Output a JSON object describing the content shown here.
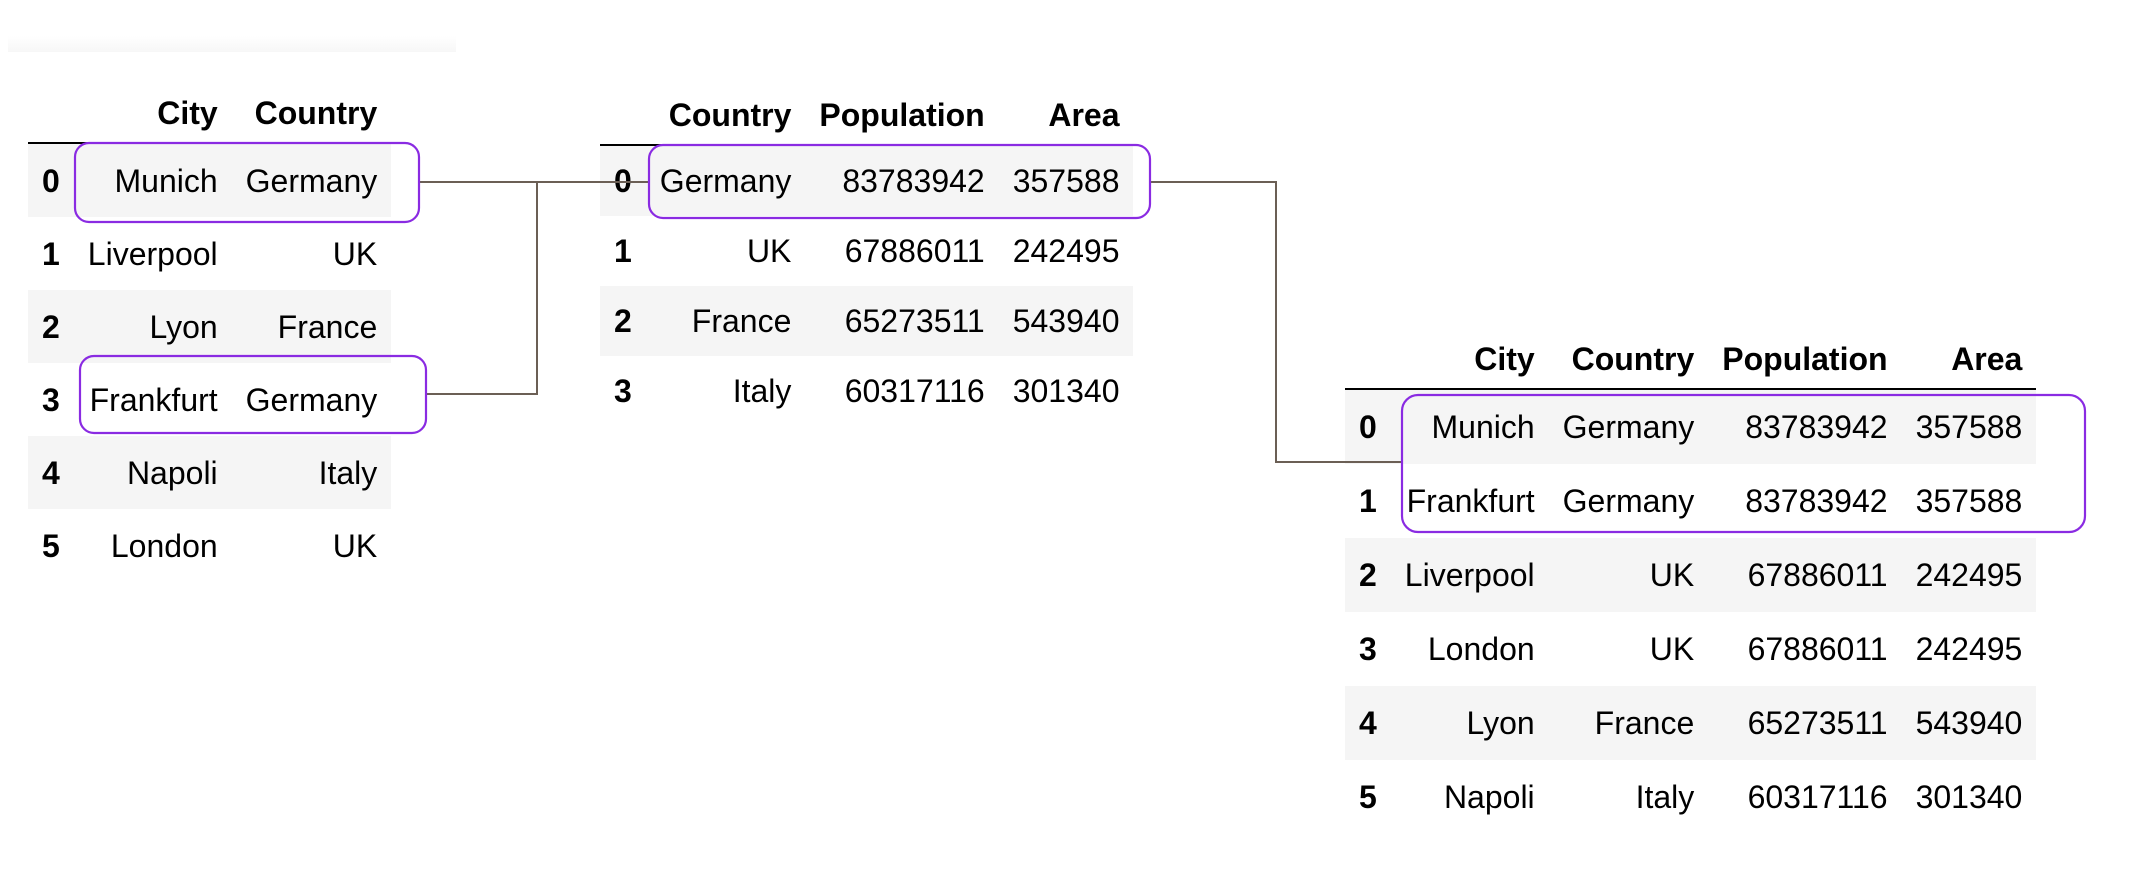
{
  "colors": {
    "highlight": "#8a2be2",
    "connector": "#6b5f55",
    "row_stripe": "#f5f5f5"
  },
  "left_table": {
    "columns": [
      "City",
      "Country"
    ],
    "rows": [
      {
        "index": "0",
        "city": "Munich",
        "country": "Germany"
      },
      {
        "index": "1",
        "city": "Liverpool",
        "country": "UK"
      },
      {
        "index": "2",
        "city": "Lyon",
        "country": "France"
      },
      {
        "index": "3",
        "city": "Frankfurt",
        "country": "Germany"
      },
      {
        "index": "4",
        "city": "Napoli",
        "country": "Italy"
      },
      {
        "index": "5",
        "city": "London",
        "country": "UK"
      }
    ]
  },
  "middle_table": {
    "columns": [
      "Country",
      "Population",
      "Area"
    ],
    "rows": [
      {
        "index": "0",
        "country": "Germany",
        "population": "83783942",
        "area": "357588"
      },
      {
        "index": "1",
        "country": "UK",
        "population": "67886011",
        "area": "242495"
      },
      {
        "index": "2",
        "country": "France",
        "population": "65273511",
        "area": "543940"
      },
      {
        "index": "3",
        "country": "Italy",
        "population": "60317116",
        "area": "301340"
      }
    ]
  },
  "result_table": {
    "columns": [
      "City",
      "Country",
      "Population",
      "Area"
    ],
    "rows": [
      {
        "index": "0",
        "city": "Munich",
        "country": "Germany",
        "population": "83783942",
        "area": "357588"
      },
      {
        "index": "1",
        "city": "Frankfurt",
        "country": "Germany",
        "population": "83783942",
        "area": "357588"
      },
      {
        "index": "2",
        "city": "Liverpool",
        "country": "UK",
        "population": "67886011",
        "area": "242495"
      },
      {
        "index": "3",
        "city": "London",
        "country": "UK",
        "population": "67886011",
        "area": "242495"
      },
      {
        "index": "4",
        "city": "Lyon",
        "country": "France",
        "population": "65273511",
        "area": "543940"
      },
      {
        "index": "5",
        "city": "Napoli",
        "country": "Italy",
        "population": "60317116",
        "area": "301340"
      }
    ]
  }
}
